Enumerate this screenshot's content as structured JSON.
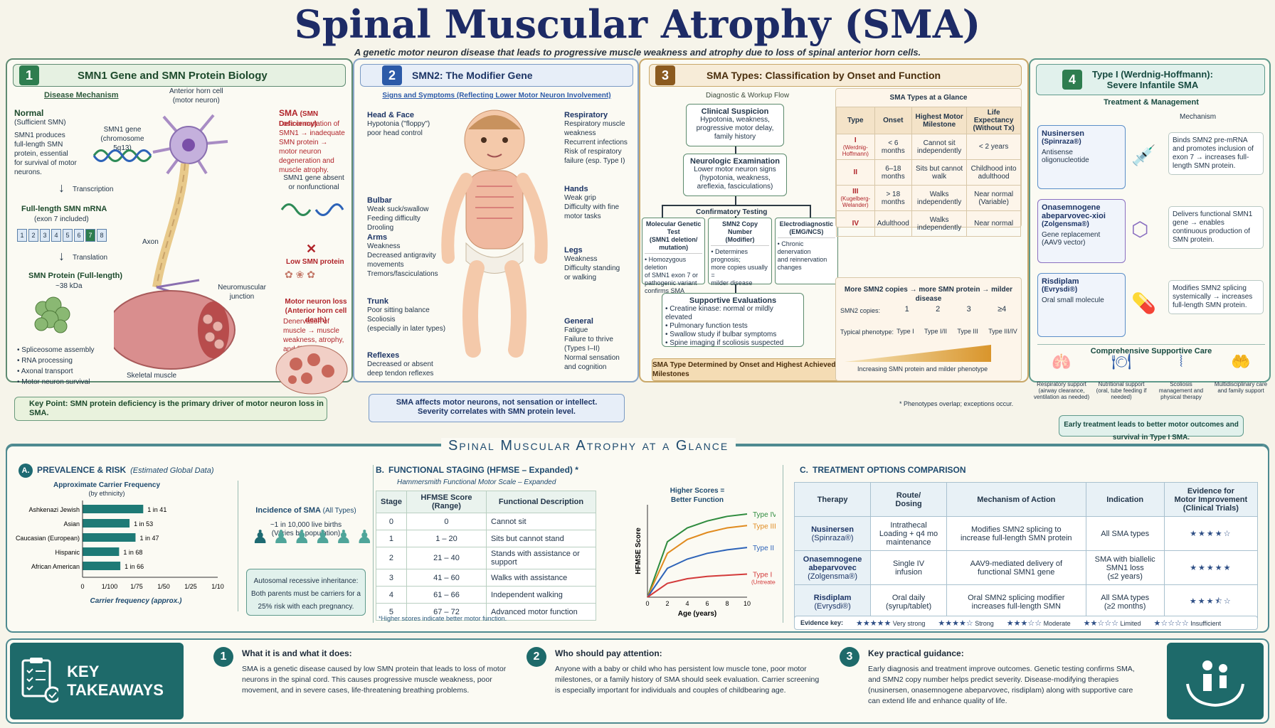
{
  "title": "Spinal Muscular Atrophy (SMA)",
  "subtitle": "A genetic motor neuron disease that leads to progressive muscle weakness and atrophy due to loss of spinal anterior horn cells.",
  "colors": {
    "green": "#2e7d4f",
    "blue": "#2c5aa8",
    "brown": "#8b5a1f",
    "teal": "#1f7e70",
    "panel_border": "#5f8b72"
  },
  "p1": {
    "num": "1",
    "title": "SMN1 Gene and SMN Protein Biology",
    "mechanism": "Disease Mechanism",
    "normal_title": "Normal",
    "normal_sub": "(Sufficient SMN)",
    "normal_desc": "SMN1 produces full-length SMN protein, essential for survival of motor neurons.",
    "gene_label": "SMN1 gene",
    "gene_loc": "(chromosome 5q13)",
    "transcription": "Transcription",
    "mrna_title": "Full-length SMN mRNA",
    "mrna_sub": "(exon 7 included)",
    "exons": [
      "1",
      "2",
      "3",
      "4",
      "5",
      "6",
      "7",
      "8"
    ],
    "translation": "Translation",
    "protein_title": "SMN Protein (Full-length)",
    "protein_kda": "~38 kDa",
    "functions": [
      "Spliceosome assembly",
      "RNA processing",
      "Axonal transport",
      "Motor neuron survival"
    ],
    "anterior_horn": "Anterior horn cell",
    "motor_neuron": "(motor neuron)",
    "axon": "Axon",
    "nmj": "Neuromuscular junction",
    "skeletal": "Skeletal muscle",
    "sma_title": "SMA",
    "sma_sub": "(SMN Deficiency)",
    "sma_desc": "Loss or mutation of SMN1 → inadequate SMN protein → motor neuron degeneration and muscle atrophy.",
    "absent": "SMN1 gene absent or nonfunctional",
    "low_smn": "Low SMN protein",
    "mn_loss": "Motor neuron loss",
    "mn_loss_sub": "(Anterior horn cell death)",
    "denervation": "Denervation of muscle → muscle weakness, atrophy, and fibrosis",
    "key_point": "Key Point: SMN protein deficiency is the primary driver of motor neuron loss in SMA."
  },
  "p2": {
    "num": "2",
    "title": "SMN2: The Modifier Gene",
    "signs": "Signs and Symptoms (Reflecting Lower Motor Neuron Involvement)",
    "left": [
      {
        "title": "Head & Face",
        "text": "Hypotonia (\"floppy\")\npoor head control"
      },
      {
        "title": "Bulbar",
        "text": "Weak suck/swallow\nFeeding difficulty\nDrooling"
      },
      {
        "title": "Arms",
        "text": "Weakness\nDecreased antigravity\nmovements\nTremors/fasciculations"
      },
      {
        "title": "Trunk",
        "text": "Poor sitting balance\nScoliosis\n(especially in later types)"
      },
      {
        "title": "Reflexes",
        "text": "Decreased or absent\ndeep tendon reflexes"
      }
    ],
    "right": [
      {
        "title": "Respiratory",
        "text": "Respiratory muscle\nweakness\nRecurrent infections\nRisk of respiratory\nfailure (esp. Type I)"
      },
      {
        "title": "Hands",
        "text": "Weak grip\nDifficulty with fine\nmotor tasks"
      },
      {
        "title": "Legs",
        "text": "Weakness\nDifficulty standing\nor walking"
      },
      {
        "title": "General",
        "text": "Fatigue\nFailure to thrive\n(Types I–II)\nNormal sensation\nand cognition"
      }
    ],
    "bottom1": "SMA affects motor neurons, not sensation or intellect.",
    "bottom2": "Severity correlates with SMN protein level."
  },
  "p3": {
    "num": "3",
    "title": "SMA Types: Classification by Onset and Function",
    "workup": "Diagnostic & Workup Flow",
    "clinical_t": "Clinical Suspicion",
    "clinical": "Hypotonia, weakness,\nprogressive motor delay,\nfamily history",
    "neuro_t": "Neurologic Examination",
    "neuro": "Lower motor neuron signs\n(hypotonia, weakness,\nareflexia, fasciculations)",
    "confirm": "Confirmatory Testing",
    "tests": [
      {
        "t": "Molecular Genetic Test\n(SMN1 deletion/ mutation)",
        "d": "• Homozygous deletion\nof SMN1 exon 7 or\npathogenic variant\nconfirms SMA"
      },
      {
        "t": "SMN2 Copy Number\n(Modifier)",
        "d": "• Determines prognosis;\nmore copies usually =\nmilder disease"
      },
      {
        "t": "Electrodiagnostic\n(EMG/NCS)",
        "d": "• Chronic denervation\nand reinnervation\nchanges"
      }
    ],
    "supp_t": "Supportive Evaluations",
    "supp": [
      "• Creatine kinase: normal or mildly elevated",
      "• Pulmonary function tests",
      "• Swallow study if bulbar symptoms",
      "• Spine imaging if scoliosis suspected"
    ],
    "determined": "SMA Type Determined by Onset and Highest Achieved Motor Milestones",
    "glance_t": "SMA Types at a Glance",
    "cols": [
      "Type",
      "Onset",
      "Highest Motor Milestone",
      "Life Expectancy (Without Tx)"
    ],
    "rows": [
      [
        "I",
        "(Werdnig-Hoffmann)",
        "< 6 months",
        "Cannot sit independently",
        "< 2 years"
      ],
      [
        "II",
        "",
        "6–18 months",
        "Sits but cannot walk",
        "Childhood into adulthood"
      ],
      [
        "III",
        "(Kugelberg-Welander)",
        "> 18 months",
        "Walks independently",
        "Near normal (Variable)"
      ],
      [
        "IV",
        "",
        "Adulthood",
        "Walks independently",
        "Near normal"
      ]
    ],
    "copies_t": "More SMN2 copies → more SMN protein → milder disease",
    "copies_label": "SMN2 copies:",
    "copies": [
      "1",
      "2",
      "3",
      "≥4"
    ],
    "pheno_label": "Typical phenotype:",
    "pheno": [
      "Type I",
      "Type I/II",
      "Type III",
      "Type III/IV"
    ],
    "increasing": "Increasing SMN protein and milder phenotype",
    "overlap": "* Phenotypes overlap; exceptions occur."
  },
  "p4": {
    "num": "4",
    "title1": "Type I (Werdnig-Hoffmann):",
    "title2": "Severe Infantile SMA",
    "treat": "Treatment & Management",
    "mech": "Mechanism",
    "drugs": [
      {
        "name": "Nusinersen",
        "brand": "(Spinraza®)",
        "type": "Antisense oligonucleotide",
        "desc": "Binds SMN2 pre-mRNA and promotes inclusion of exon 7 → increases full-length SMN protein."
      },
      {
        "name": "Onasemnogene abeparvovec-xioi",
        "brand": "(Zolgensma®)",
        "type": "Gene replacement (AAV9 vector)",
        "desc": "Delivers functional SMN1 gene → enables continuous production of SMN protein."
      },
      {
        "name": "Risdiplam",
        "brand": "(Evrysdi®)",
        "type": "Oral small molecule",
        "desc": "Modifies SMN2 splicing systemically → increases full-length SMN protein."
      }
    ],
    "care_t": "Comprehensive Supportive Care",
    "care": [
      "Respiratory support (airway clearance, ventilation as needed)",
      "Nutritional support (oral, tube feeding if needed)",
      "Scoliosis management and physical therapy",
      "Multidisciplinary care and family support"
    ],
    "early": "Early treatment leads to better motor outcomes and survival in Type I SMA."
  },
  "glance": {
    "title": "Spinal Muscular Atrophy at a Glance",
    "a": {
      "letter": "A.",
      "title": "PREVALENCE & RISK",
      "sub": "(Estimated Global Data)",
      "chart_title": "Approximate Carrier Frequency",
      "chart_sub": "(by ethnicity)",
      "incidence_t": "Incidence of SMA",
      "incidence_sub": "(All Types)",
      "incidence": "~1 in 10,000 live births",
      "incidence2": "(Varies by population)",
      "auto": "Autosomal recessive inheritance: Both parents must be carriers for a 25% risk with each pregnancy."
    },
    "b": {
      "letter": "B.",
      "title": "FUNCTIONAL STAGING (HFMSE – Expanded) *",
      "sub": "Hammersmith Functional Motor Scale – Expanded",
      "cols": [
        "Stage",
        "HFMSE Score (Range)",
        "Functional Description"
      ],
      "rows": [
        [
          "0",
          "0",
          "Cannot sit"
        ],
        [
          "1",
          "1 – 20",
          "Sits but cannot stand"
        ],
        [
          "2",
          "21 – 40",
          "Stands with assistance or support"
        ],
        [
          "3",
          "41 – 60",
          "Walks with assistance"
        ],
        [
          "4",
          "61 – 66",
          "Independent walking"
        ],
        [
          "5",
          "67 – 72",
          "Advanced motor function"
        ]
      ],
      "note": "*Higher scores indicate better motor function.",
      "higher": "Higher Scores =\nBetter Function"
    },
    "c": {
      "letter": "C.",
      "title": "TREATMENT OPTIONS COMPARISON",
      "cols": [
        "Therapy",
        "Route/\nDosing",
        "Mechanism of Action",
        "Indication",
        "Evidence for\nMotor Improvement\n(Clinical Trials)"
      ],
      "rows": [
        {
          "name": "Nusinersen",
          "brand": "(Spinraza®)",
          "route": "Intrathecal\nLoading + q4 mo\nmaintenance",
          "mech": "Modifies SMN2 splicing to\nincrease full-length SMN protein",
          "ind": "All SMA types",
          "stars": "★★★★☆"
        },
        {
          "name": "Onasemnogene\nabeparvovec",
          "brand": "(Zolgensma®)",
          "route": "Single IV\ninfusion",
          "mech": "AAV9-mediated delivery of\nfunctional SMN1 gene",
          "ind": "SMA with biallelic\nSMN1 loss\n(≤2 years)",
          "stars": "★★★★★"
        },
        {
          "name": "Risdiplam",
          "brand": "(Evrysdi®)",
          "route": "Oral daily\n(syrup/tablet)",
          "mech": "Oral SMN2 splicing modifier\nincreases full-length SMN",
          "ind": "All SMA types\n(≥2 months)",
          "stars": "★★★⯪☆"
        }
      ],
      "key_label": "Evidence key:",
      "keys": [
        {
          "s": "★★★★★",
          "l": "Very strong"
        },
        {
          "s": "★★★★☆",
          "l": "Strong"
        },
        {
          "s": "★★★☆☆",
          "l": "Moderate"
        },
        {
          "s": "★★☆☆☆",
          "l": "Limited"
        },
        {
          "s": "★☆☆☆☆",
          "l": "Insufficient"
        }
      ]
    }
  },
  "takeaways": {
    "label": "KEY TAKEAWAYS",
    "items": [
      {
        "n": "1",
        "t": "What it is and what it does:",
        "d": "SMA is a genetic disease caused by low SMN protein that leads to loss of motor neurons in the spinal cord. This causes progressive muscle weakness, poor movement, and in severe cases, life-threatening breathing problems."
      },
      {
        "n": "2",
        "t": "Who should pay attention:",
        "d": "Anyone with a baby or child who has persistent low muscle tone, poor motor milestones, or a family history of SMA should seek evaluation. Carrier screening is especially important for individuals and couples of childbearing age."
      },
      {
        "n": "3",
        "t": "Key practical guidance:",
        "d": "Early diagnosis and treatment improve outcomes. Genetic testing confirms SMA, and SMN2 copy number helps predict severity. Disease-modifying therapies (nusinersen, onasemnogene abeparvovec, risdiplam) along with supportive care can extend life and enhance quality of life."
      }
    ]
  },
  "chart_data": [
    {
      "type": "bar",
      "title": "Approximate Carrier Frequency",
      "subtitle": "(by ethnicity)",
      "xlabel": "Carrier frequency (approx.)",
      "categories": [
        "Ashkenazi Jewish",
        "Asian",
        "Caucasian (European)",
        "Hispanic",
        "African American"
      ],
      "values": [
        0.0244,
        0.0189,
        0.0213,
        0.0147,
        0.0152
      ],
      "value_labels": [
        "1 in 41",
        "1 in 53",
        "1 in 47",
        "1 in 68",
        "1 in 66"
      ],
      "xticks": [
        "0",
        "1/100",
        "1/75",
        "1/50",
        "1/25",
        "1/10"
      ]
    },
    {
      "type": "line",
      "xlabel": "Age (years)",
      "ylabel": "HFMSE Score",
      "x": [
        0,
        2,
        4,
        6,
        8,
        10
      ],
      "xlim": [
        0,
        10
      ],
      "series": [
        {
          "name": "Type IV",
          "color": "#2e8b3e",
          "values": [
            0,
            48,
            60,
            66,
            70,
            72
          ]
        },
        {
          "name": "Type III",
          "color": "#e08a1e",
          "values": [
            0,
            38,
            50,
            56,
            60,
            62
          ]
        },
        {
          "name": "Type II",
          "color": "#2d63b8",
          "values": [
            0,
            25,
            33,
            38,
            41,
            43
          ]
        },
        {
          "name": "Type I",
          "sub": "(Untreated)",
          "color": "#d33a3a",
          "values": [
            0,
            12,
            16,
            18,
            19,
            20
          ]
        }
      ]
    }
  ]
}
